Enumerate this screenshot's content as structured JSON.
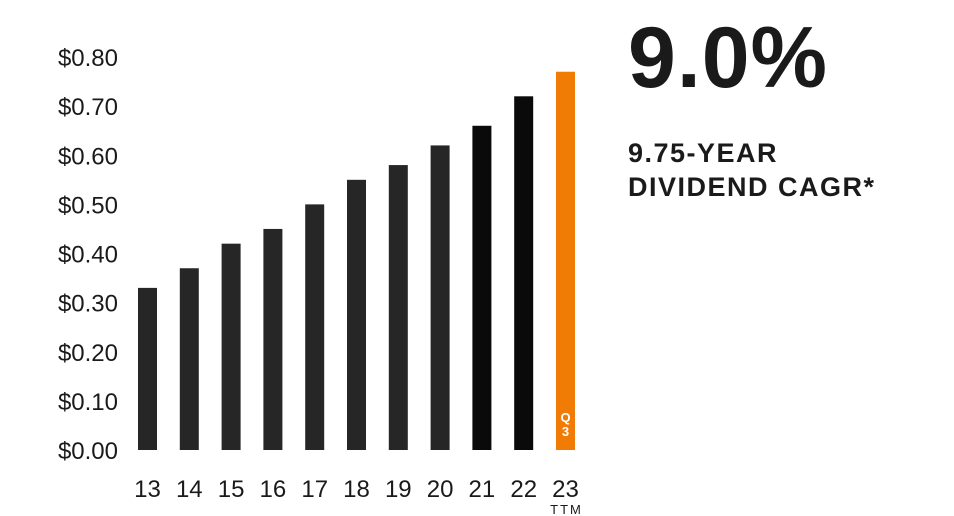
{
  "chart_data": {
    "type": "bar",
    "categories": [
      "13",
      "14",
      "15",
      "16",
      "17",
      "18",
      "19",
      "20",
      "21",
      "22",
      "23"
    ],
    "values": [
      0.33,
      0.37,
      0.42,
      0.45,
      0.5,
      0.55,
      0.58,
      0.62,
      0.66,
      0.72,
      0.77
    ],
    "ylim": [
      0,
      0.8
    ],
    "yticks": [
      "$0.00",
      "$0.10",
      "$0.20",
      "$0.30",
      "$0.40",
      "$0.50",
      "$0.60",
      "$0.70",
      "$0.80"
    ],
    "ytick_values": [
      0,
      0.1,
      0.2,
      0.3,
      0.4,
      0.5,
      0.6,
      0.7,
      0.8
    ],
    "x_sublabel": {
      "category": "23",
      "text": "TTM"
    },
    "bar_annotation": {
      "category": "23",
      "text": [
        "Q",
        "3"
      ]
    },
    "grid": false,
    "colors": {
      "default": "#262626",
      "recent": "#0a0a0a",
      "highlight": "#f07b05",
      "recent_categories": [
        "21",
        "22"
      ],
      "highlight_category": "23"
    }
  },
  "kpi": {
    "value": "9.0%",
    "label_line1": "9.75-YEAR",
    "label_line2": "DIVIDEND CAGR*"
  }
}
